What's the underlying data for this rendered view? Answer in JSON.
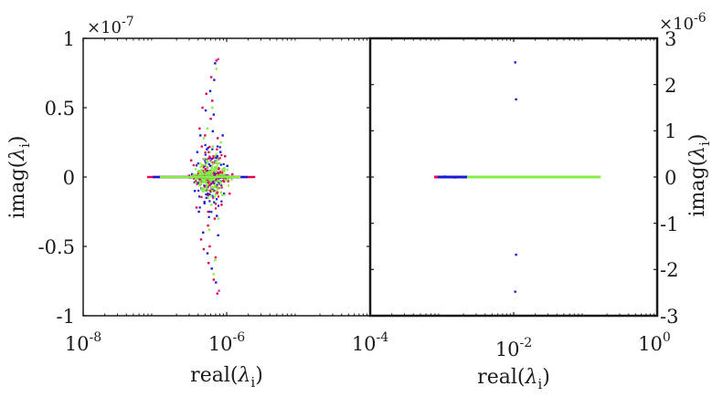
{
  "chart_data": [
    {
      "type": "scatter",
      "xlabel": "real(λ_i)",
      "ylabel": "imag(λ_i)",
      "x_scale": "log",
      "xlim": [
        1e-08,
        0.0001
      ],
      "ylim": [
        -1e-07,
        1e-07
      ],
      "y_multiplier": "×10^-7",
      "xticks": [
        1e-08,
        1e-06,
        0.0001
      ],
      "yticks": [
        -1,
        -0.5,
        0,
        0.5,
        1
      ],
      "tick_labels_x": [
        {
          "base": "10",
          "exp": "-8"
        },
        {
          "base": "10",
          "exp": "-6"
        },
        {
          "base": "10",
          "exp": "-4"
        }
      ],
      "tick_labels_y": [
        "-1",
        "-0.5",
        "0",
        "0.5",
        "1"
      ],
      "multiplier_label": {
        "base": "×10",
        "exp": "-7"
      },
      "series": [
        {
          "color": "#e6004c",
          "points": [
            [
              1e-07,
              0
            ],
            [
              1.3e-07,
              0
            ],
            [
              1.6e-07,
              0
            ],
            [
              2e-07,
              0
            ],
            [
              2.5e-07,
              0
            ],
            [
              3e-07,
              1e-09
            ],
            [
              3.5e-07,
              -1e-09
            ],
            [
              4e-07,
              2e-09
            ],
            [
              4.5e-07,
              -3e-09
            ],
            [
              5e-07,
              5e-09
            ],
            [
              5.5e-07,
              -7e-09
            ],
            [
              6e-07,
              8e-09
            ],
            [
              6.5e-07,
              -9e-09
            ],
            [
              7e-07,
              6e-09
            ],
            [
              8e-07,
              -5e-09
            ],
            [
              9e-07,
              4e-09
            ],
            [
              1.05e-06,
              -3e-09
            ],
            [
              1.2e-06,
              2e-09
            ],
            [
              1.35e-06,
              0
            ],
            [
              1.5e-06,
              0
            ],
            [
              3.2e-07,
              1.2e-08
            ],
            [
              3.8e-07,
              -2.2e-08
            ],
            [
              4.2e-07,
              3.5e-08
            ],
            [
              4.4e-07,
              -4.5e-08
            ],
            [
              4.6e-07,
              5e-08
            ],
            [
              4.8e-07,
              -5.2e-08
            ],
            [
              5.2e-07,
              6e-08
            ],
            [
              5.6e-07,
              -6.2e-08
            ],
            [
              6.1e-07,
              7.2e-08
            ],
            [
              6.6e-07,
              -7.4e-08
            ],
            [
              7.2e-07,
              8.4e-08
            ],
            [
              7.4e-07,
              -8.4e-08
            ],
            [
              5e-07,
              3e-08
            ],
            [
              5.5e-07,
              -3.5e-08
            ],
            [
              6e-07,
              4.2e-08
            ],
            [
              6.8e-07,
              -3e-08
            ],
            [
              7.5e-07,
              2.8e-08
            ],
            [
              8.5e-07,
              -2e-08
            ],
            [
              9.5e-07,
              1.5e-08
            ],
            [
              1.1e-06,
              -1.2e-08
            ],
            [
              4.5e-07,
              2.2e-08
            ],
            [
              5.8e-07,
              -5e-08
            ],
            [
              6.3e-07,
              5.5e-08
            ],
            [
              7e-07,
              -5.8e-08
            ]
          ]
        },
        {
          "color": "#1a1ad6",
          "points": [
            [
              1.1e-07,
              0
            ],
            [
              1.4e-07,
              0
            ],
            [
              1.8e-07,
              0
            ],
            [
              2.2e-07,
              0
            ],
            [
              2.8e-07,
              0
            ],
            [
              3.3e-07,
              2e-09
            ],
            [
              3.6e-07,
              -1e-08
            ],
            [
              3.9e-07,
              1.8e-08
            ],
            [
              4.1e-07,
              -2.5e-08
            ],
            [
              4.3e-07,
              3e-08
            ],
            [
              4.7e-07,
              -4e-08
            ],
            [
              5.1e-07,
              4.8e-08
            ],
            [
              5.4e-07,
              -5.5e-08
            ],
            [
              5.9e-07,
              6.2e-08
            ],
            [
              6.2e-07,
              -6.6e-08
            ],
            [
              6.7e-07,
              7e-08
            ],
            [
              7.1e-07,
              -7.6e-08
            ],
            [
              6.9e-07,
              8.2e-08
            ],
            [
              5.3e-07,
              2e-08
            ],
            [
              5.7e-07,
              -2.5e-08
            ],
            [
              6.4e-07,
              3.3e-08
            ],
            [
              7.3e-07,
              -2.8e-08
            ],
            [
              8.2e-07,
              1.8e-08
            ],
            [
              9.2e-07,
              -1.2e-08
            ],
            [
              1.02e-06,
              8e-09
            ],
            [
              1.15e-06,
              0
            ],
            [
              4.9e-07,
              -1.8e-08
            ],
            [
              6.6e-07,
              4.5e-08
            ],
            [
              7.6e-07,
              -4.2e-08
            ],
            [
              8.8e-07,
              3e-08
            ]
          ]
        },
        {
          "color": "#cc33cc",
          "points": [
            [
              7.6e-07,
              8.5e-08
            ],
            [
              7.8e-07,
              -8.2e-08
            ],
            [
              6e-07,
              1.2e-08
            ],
            [
              6.5e-07,
              -1.5e-08
            ]
          ]
        },
        {
          "color": "#88ee44",
          "points": [
            [
              1.2e-07,
              0
            ],
            [
              1.5e-07,
              0
            ],
            [
              1.9e-07,
              0
            ],
            [
              2.4e-07,
              0
            ],
            [
              2.9e-07,
              0
            ],
            [
              3.4e-07,
              1e-09
            ],
            [
              3.7e-07,
              -2e-09
            ],
            [
              4e-07,
              4e-09
            ],
            [
              4.3e-07,
              -5e-09
            ],
            [
              4.6e-07,
              8e-09
            ],
            [
              4.9e-07,
              -1e-08
            ],
            [
              5.2e-07,
              1.2e-08
            ],
            [
              5.5e-07,
              -1.5e-08
            ],
            [
              5.8e-07,
              1.8e-08
            ],
            [
              6.1e-07,
              -2e-08
            ],
            [
              6.4e-07,
              2.2e-08
            ],
            [
              6.7e-07,
              -1.8e-08
            ],
            [
              7e-07,
              1.5e-08
            ],
            [
              7.4e-07,
              -1.2e-08
            ],
            [
              7.9e-07,
              1e-08
            ],
            [
              8.5e-07,
              -6e-09
            ],
            [
              9.2e-07,
              4e-09
            ],
            [
              1e-06,
              -2e-09
            ],
            [
              1.1e-06,
              0
            ],
            [
              5e-07,
              5e-09
            ],
            [
              5.3e-07,
              -3e-09
            ],
            [
              5.6e-07,
              2e-09
            ],
            [
              5.9e-07,
              -6e-09
            ],
            [
              6.2e-07,
              7e-09
            ],
            [
              6.5e-07,
              -9e-09
            ],
            [
              6.8e-07,
              1.1e-08
            ],
            [
              5.4e-07,
              3.5e-08
            ],
            [
              5.7e-07,
              -3.8e-08
            ],
            [
              6.3e-07,
              5e-08
            ],
            [
              6.9e-07,
              -6e-08
            ],
            [
              7.2e-07,
              7.8e-08
            ],
            [
              6.6e-07,
              -7e-08
            ],
            [
              4.8e-07,
              2.8e-08
            ],
            [
              7.7e-07,
              -3e-08
            ],
            [
              8.3e-07,
              2.5e-08
            ]
          ]
        }
      ]
    },
    {
      "type": "scatter",
      "xlabel": "real(λ_i)",
      "ylabel": "imag(λ_i)",
      "x_scale": "log",
      "xlim": [
        0.0001,
        1
      ],
      "ylim": [
        -3e-06,
        3e-06
      ],
      "y_multiplier": "×10^-6",
      "xticks": [
        0.0001,
        0.01,
        1
      ],
      "yticks": [
        -3,
        -2,
        -1,
        0,
        1,
        2,
        3
      ],
      "tick_labels_x": [
        {
          "base": "10",
          "exp": "-4"
        },
        {
          "base": "10",
          "exp": "-2"
        },
        {
          "base": "10",
          "exp": "0"
        }
      ],
      "tick_labels_y": [
        "-3",
        "-2",
        "-1",
        "0",
        "1",
        "2",
        "3"
      ],
      "multiplier_label": {
        "base": "×10",
        "exp": "-6"
      },
      "series": [
        {
          "color": "#e6004c",
          "points": [
            [
              0.00085,
              0
            ],
            [
              0.0009,
              0
            ],
            [
              0.00095,
              0
            ]
          ]
        },
        {
          "color": "#1a1ad6",
          "points": [
            [
              0.001,
              0
            ],
            [
              0.0011,
              0
            ],
            [
              0.0012,
              0
            ],
            [
              0.0013,
              0
            ],
            [
              0.0014,
              0
            ],
            [
              0.0015,
              0
            ],
            [
              0.0016,
              0
            ],
            [
              0.0018,
              0
            ],
            [
              0.002,
              0
            ],
            [
              0.0011,
              1e-08
            ],
            [
              0.0015,
              -1e-08
            ],
            [
              0.0105,
              2.48e-06
            ],
            [
              0.0108,
              1.68e-06
            ],
            [
              0.0108,
              -1.68e-06
            ],
            [
              0.0105,
              -2.48e-06
            ]
          ]
        },
        {
          "color": "#88ee44",
          "points": [
            [
              0.0022,
              0
            ],
            [
              0.0025,
              0
            ],
            [
              0.003,
              0
            ],
            [
              0.004,
              0
            ],
            [
              0.005,
              0
            ],
            [
              0.007,
              0
            ],
            [
              0.01,
              0
            ],
            [
              0.015,
              0
            ],
            [
              0.02,
              0
            ],
            [
              0.03,
              0
            ],
            [
              0.05,
              0
            ],
            [
              0.07,
              0
            ],
            [
              0.1,
              0
            ],
            [
              0.13,
              0
            ],
            [
              0.15,
              0
            ]
          ]
        }
      ]
    }
  ]
}
